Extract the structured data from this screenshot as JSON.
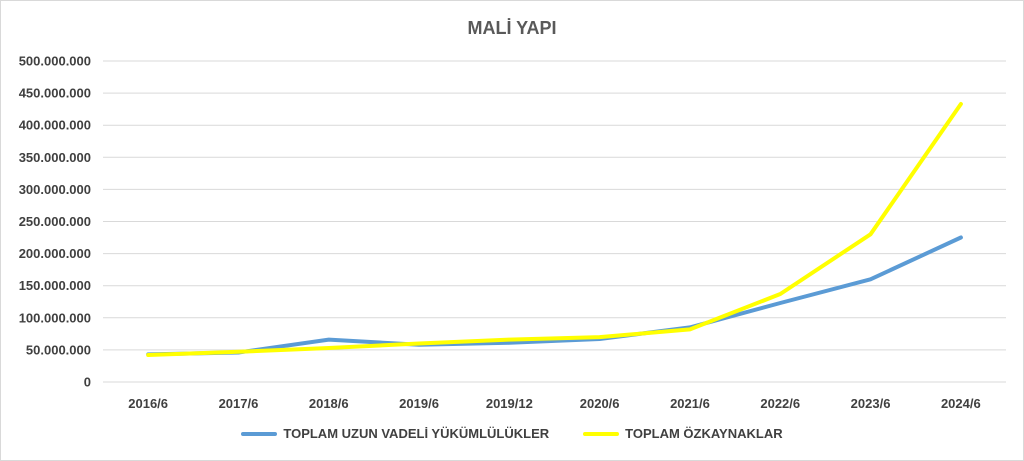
{
  "chart_data": {
    "type": "line",
    "title": "MALİ YAPI",
    "xlabel": "",
    "ylabel": "",
    "categories": [
      "2016/6",
      "2017/6",
      "2018/6",
      "2019/6",
      "2019/12",
      "2020/6",
      "2021/6",
      "2022/6",
      "2023/6",
      "2024/6"
    ],
    "ylim": [
      0,
      500000000
    ],
    "yticks": [
      0,
      50000000,
      100000000,
      150000000,
      200000000,
      250000000,
      300000000,
      350000000,
      400000000,
      450000000,
      500000000
    ],
    "ytick_labels": [
      "0",
      "50.000.000",
      "100.000.000",
      "150.000.000",
      "200.000.000",
      "250.000.000",
      "300.000.000",
      "350.000.000",
      "400.000.000",
      "450.000.000",
      "500.000.000"
    ],
    "grid": true,
    "legend_position": "bottom",
    "series": [
      {
        "name": "TOPLAM UZUN VADELİ YÜKÜMLÜLÜKLER",
        "color": "#5b9bd5",
        "values": [
          43000000,
          46000000,
          66000000,
          58000000,
          61000000,
          67000000,
          85000000,
          123000000,
          160000000,
          225000000
        ]
      },
      {
        "name": "TOPLAM ÖZKAYNAKLAR",
        "color": "#ffff00",
        "values": [
          42000000,
          47000000,
          53000000,
          60000000,
          66000000,
          70000000,
          82000000,
          137000000,
          230000000,
          433000000
        ]
      }
    ]
  }
}
